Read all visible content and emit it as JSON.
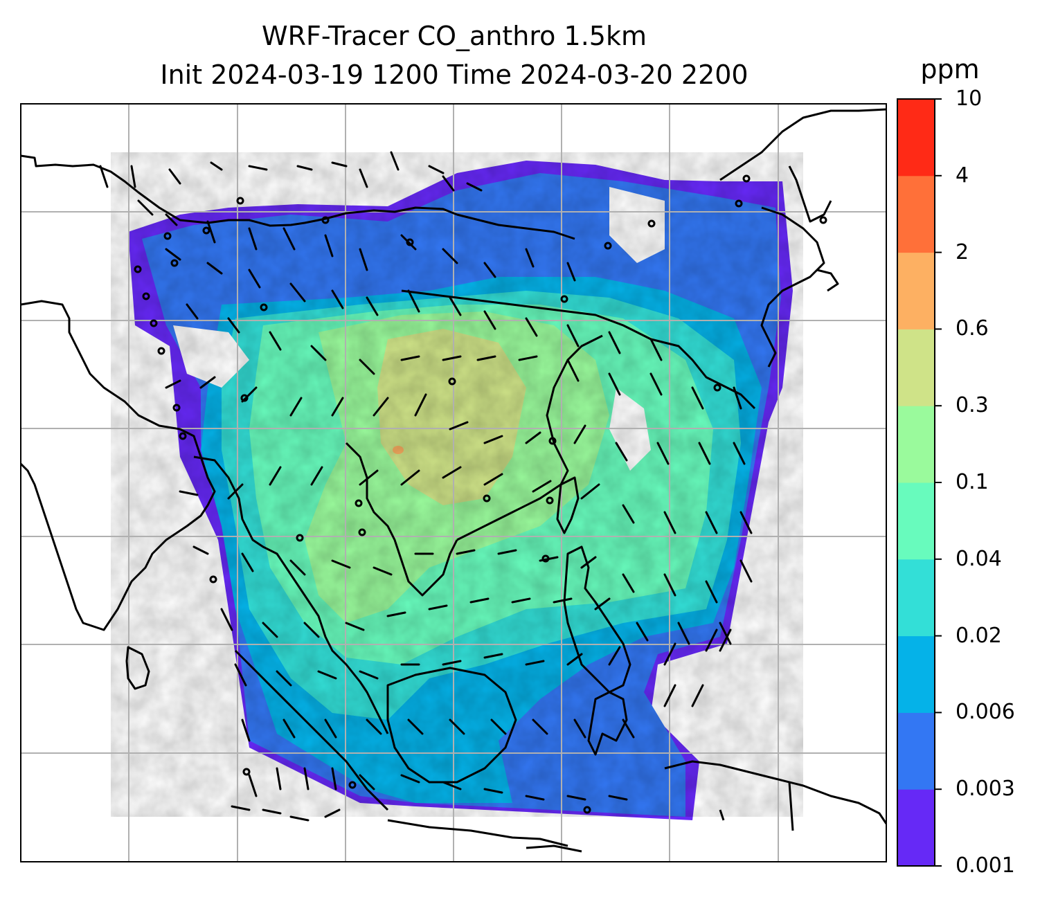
{
  "title": {
    "line1": "WRF-Tracer CO_anthro 1.5km",
    "line2": "Init 2024-03-19 1200 Time 2024-03-20 2200"
  },
  "colorbar": {
    "unit": "ppm",
    "levels": [
      "0.001",
      "0.003",
      "0.006",
      "0.02",
      "0.04",
      "0.1",
      "0.3",
      "0.6",
      "2",
      "4",
      "10"
    ],
    "colors": [
      "#6629f6",
      "#3377f3",
      "#05b2e8",
      "#33dfd7",
      "#68fbbd",
      "#9afa9c",
      "#cfe388",
      "#fdb062",
      "#ff7039",
      "#ff2a16"
    ]
  },
  "map": {
    "background": "#ffffff",
    "coastline_color": "#000000",
    "gridline_color": "#b0b0b0",
    "barb_color": "#000000",
    "features": [
      "coastlines",
      "country-borders",
      "lat-lon-gridlines",
      "wind-barbs",
      "calm-wind-circles"
    ]
  }
}
